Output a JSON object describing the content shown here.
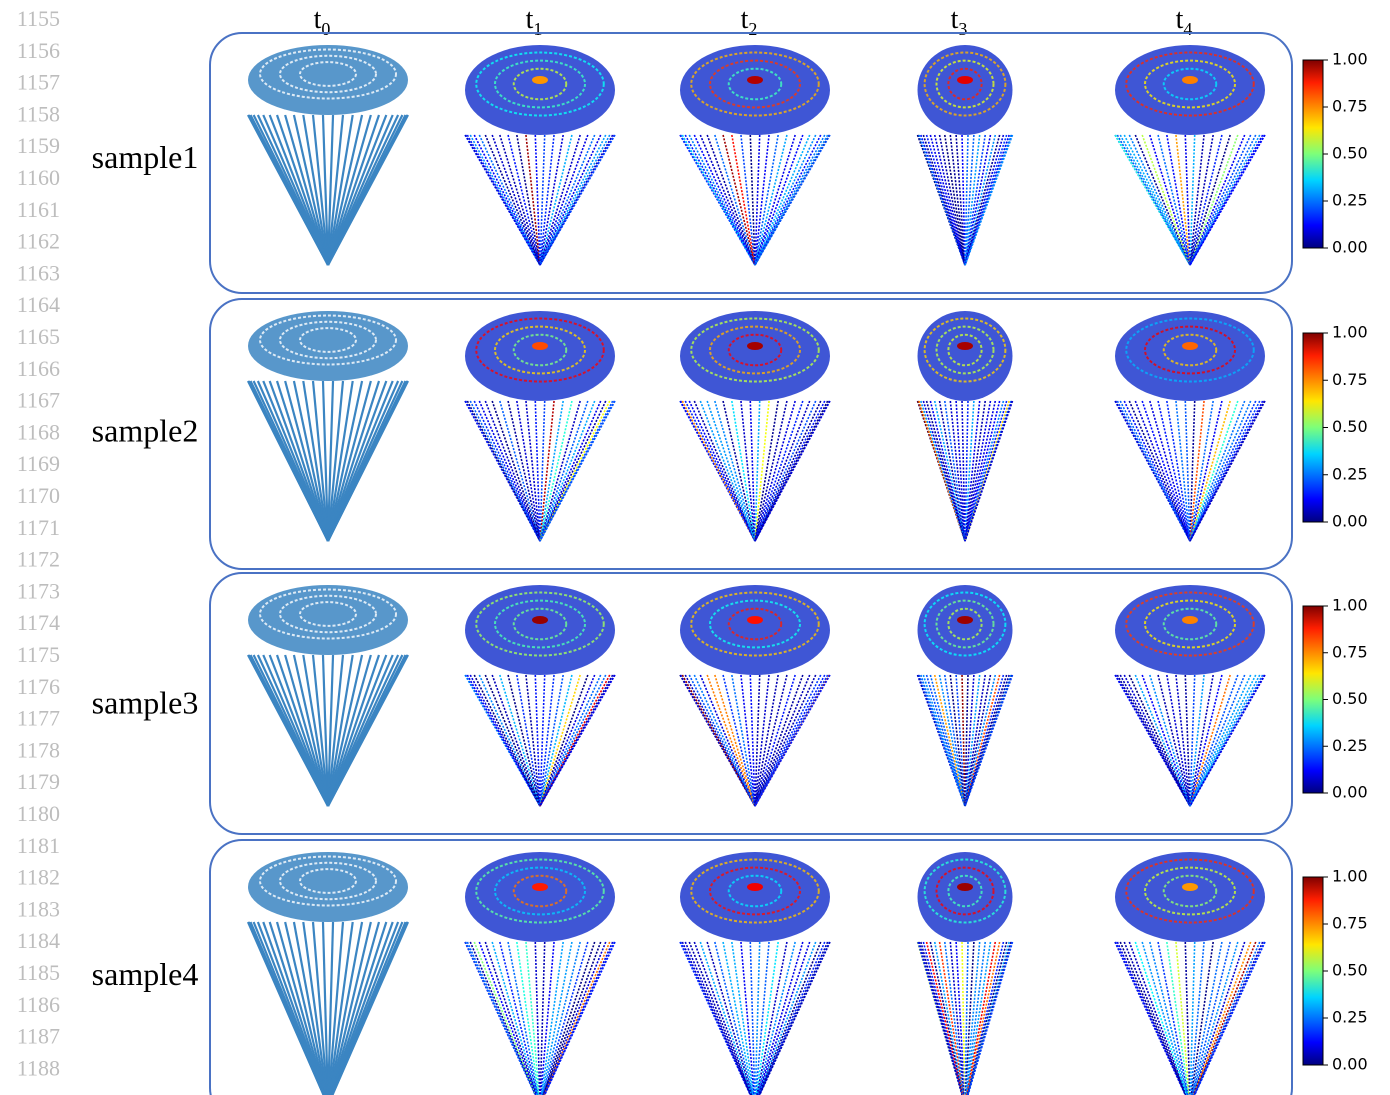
{
  "line_numbers": [
    "1155",
    "1156",
    "1157",
    "1158",
    "1159",
    "1160",
    "1161",
    "1162",
    "1163",
    "1164",
    "1165",
    "1166",
    "1167",
    "1168",
    "1169",
    "1170",
    "1171",
    "1172",
    "1173",
    "1174",
    "1175",
    "1176",
    "1177",
    "1178",
    "1179",
    "1180",
    "1181",
    "1182",
    "1183",
    "1184",
    "1185",
    "1186",
    "1187",
    "1188"
  ],
  "columns": [
    {
      "base": "t",
      "sub": "0"
    },
    {
      "base": "t",
      "sub": "1"
    },
    {
      "base": "t",
      "sub": "2"
    },
    {
      "base": "t",
      "sub": "3"
    },
    {
      "base": "t",
      "sub": "4"
    }
  ],
  "rows": [
    {
      "label": "sample1",
      "colorbar_ticks": [
        "1.00",
        "0.75",
        "0.50",
        "0.25",
        "0.00"
      ]
    },
    {
      "label": "sample2",
      "colorbar_ticks": [
        "1.00",
        "0.75",
        "0.50",
        "0.25",
        "0.00"
      ]
    },
    {
      "label": "sample3",
      "colorbar_ticks": [
        "1.00",
        "0.75",
        "0.50",
        "0.25",
        "0.00"
      ]
    },
    {
      "label": "sample4",
      "colorbar_ticks": [
        "1.00",
        "0.75",
        "0.50",
        "0.25",
        "0.00"
      ]
    }
  ]
}
